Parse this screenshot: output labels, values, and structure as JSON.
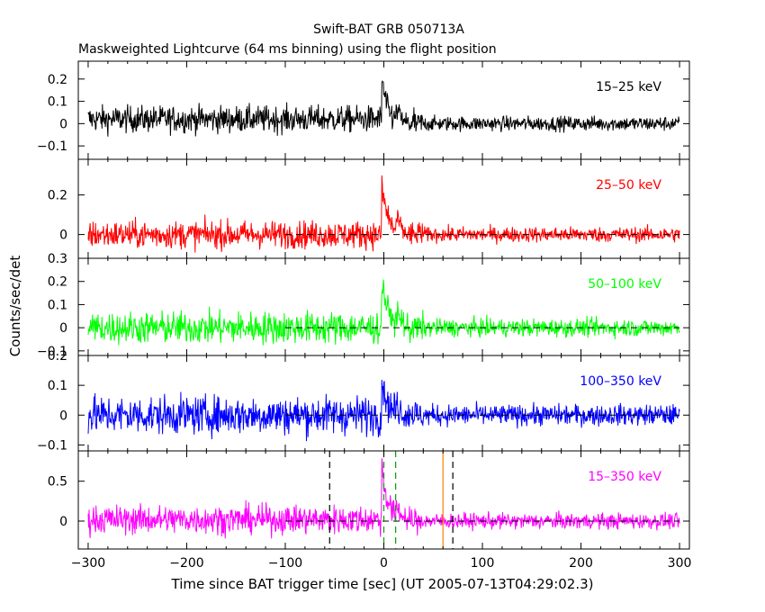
{
  "chart_data": {
    "type": "line",
    "title": "Swift-BAT GRB 050713A",
    "subtitle": "Maskweighted Lightcurve (64 ms binning) using the flight position",
    "xlabel": "Time since BAT trigger time [sec] (UT 2005-07-13T04:29:02.3)",
    "ylabel": "Counts/sec/det",
    "xlim": [
      -310,
      310
    ],
    "xticks": [
      -300,
      -200,
      -100,
      0,
      100,
      200,
      300
    ],
    "xtick_labels": [
      "−300",
      "−200",
      "−100",
      "0",
      "100",
      "200",
      "300"
    ],
    "grid": false,
    "panels": [
      {
        "band": "15–25 keV",
        "color": "#000000",
        "ylim": [
          -0.16,
          0.28
        ],
        "yticks": [
          -0.1,
          0,
          0.1,
          0.2
        ],
        "ytick_labels": [
          "−0.1",
          "0",
          "0.1",
          "0.2"
        ],
        "noise": 0.03,
        "pre_offset": 0.02,
        "peak": 0.22,
        "zero_line": false
      },
      {
        "band": "25–50 keV",
        "color": "#ff0000",
        "ylim": [
          -0.12,
          0.38
        ],
        "yticks": [
          0,
          0.2
        ],
        "ytick_labels": [
          "0",
          "0.2"
        ],
        "noise": 0.035,
        "pre_offset": 0.0,
        "peak": 0.3,
        "zero_line": true
      },
      {
        "band": "50–100 keV",
        "color": "#00ff00",
        "ylim": [
          -0.12,
          0.3
        ],
        "yticks": [
          -0.1,
          0,
          0.1,
          0.2,
          0.3
        ],
        "ytick_labels": [
          "−0.1",
          "0",
          "0.1",
          "0.2",
          "0.3"
        ],
        "noise": 0.035,
        "pre_offset": 0.0,
        "peak": 0.26,
        "zero_line": true
      },
      {
        "band": "100–350 keV",
        "color": "#0000ff",
        "ylim": [
          -0.12,
          0.2
        ],
        "yticks": [
          -0.1,
          0,
          0.1,
          0.2
        ],
        "ytick_labels": [
          "−0.1",
          "0",
          "0.1",
          "0.2"
        ],
        "noise": 0.032,
        "pre_offset": 0.0,
        "peak": 0.14,
        "zero_line": true
      },
      {
        "band": "15–350 keV",
        "color": "#ff00ff",
        "ylim": [
          -0.35,
          0.88
        ],
        "yticks": [
          0,
          0.5
        ],
        "ytick_labels": [
          "0",
          "0.5"
        ],
        "noise": 0.09,
        "pre_offset": 0.02,
        "peak": 0.8,
        "zero_line": true,
        "markers": [
          {
            "x": -55,
            "color": "#000000",
            "dash": true
          },
          {
            "x": 0,
            "color": "#00a000",
            "dash": true
          },
          {
            "x": 12,
            "color": "#00a000",
            "dash": true
          },
          {
            "x": 60,
            "color": "#ff8000",
            "dash": false
          },
          {
            "x": 70,
            "color": "#000000",
            "dash": true
          }
        ]
      }
    ]
  }
}
